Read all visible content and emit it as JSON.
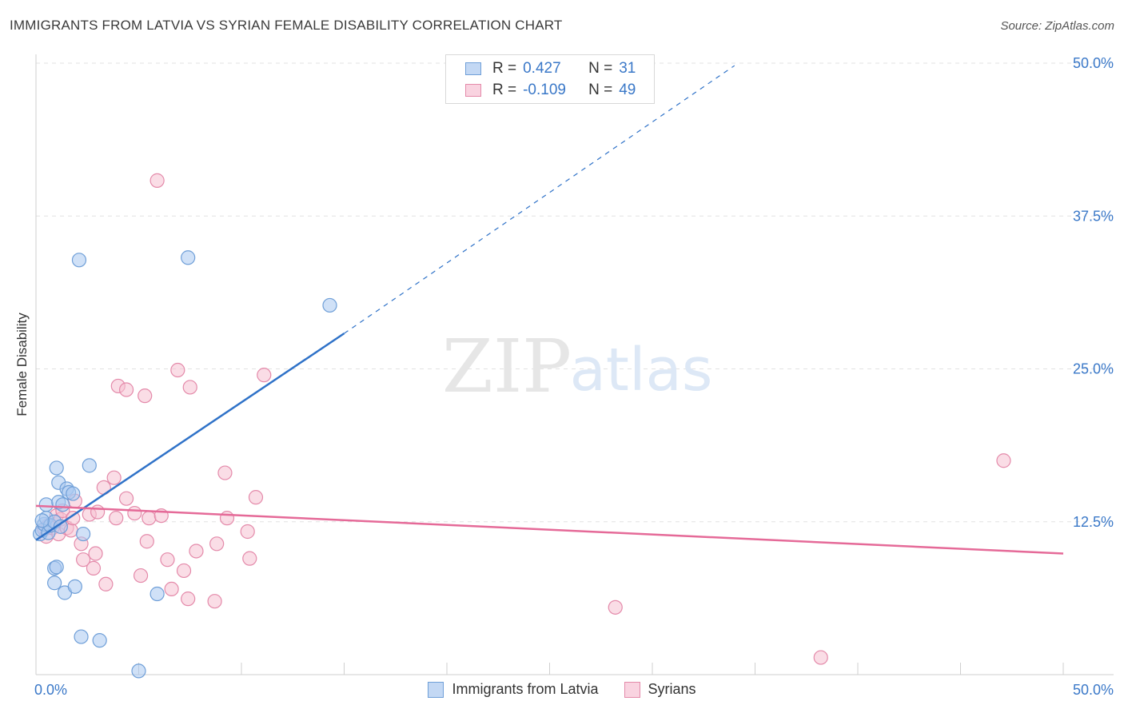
{
  "title": "IMMIGRANTS FROM LATVIA VS SYRIAN FEMALE DISABILITY CORRELATION CHART",
  "source": "Source: ZipAtlas.com",
  "watermark": {
    "zip": "ZIP",
    "atlas": "atlas"
  },
  "legend": {
    "r_label": "R =",
    "n_label": "N =",
    "series": [
      {
        "r": "0.427",
        "n": "31",
        "color": "#a9c8f0",
        "border": "#6f9fd8"
      },
      {
        "r": "-0.109",
        "n": "49",
        "color": "#f6c1d2",
        "border": "#e48aaa"
      }
    ]
  },
  "chart_data": {
    "type": "scatter",
    "title": "IMMIGRANTS FROM LATVIA VS SYRIAN FEMALE DISABILITY CORRELATION CHART",
    "xlabel": "",
    "ylabel": "Female Disability",
    "xlim": [
      0,
      50
    ],
    "ylim": [
      0,
      50
    ],
    "x_tick_labels": [
      "0.0%",
      "50.0%"
    ],
    "y_ticks": [
      12.5,
      25.0,
      37.5,
      50.0
    ],
    "y_tick_labels": [
      "12.5%",
      "25.0%",
      "37.5%",
      "50.0%"
    ],
    "grid": true,
    "legend_position": "bottom",
    "series": [
      {
        "name": "Immigrants from Latvia",
        "color": "#a9c8f0",
        "stroke": "#6f9fd8",
        "trend": {
          "x": [
            0,
            15,
            34.0
          ],
          "y": [
            11.0,
            27.9,
            49.8
          ],
          "color": "#2f72c8"
        },
        "points": [
          [
            0.2,
            11.5
          ],
          [
            0.3,
            11.8
          ],
          [
            0.4,
            12.3
          ],
          [
            0.5,
            12.8
          ],
          [
            0.6,
            11.6
          ],
          [
            0.5,
            13.9
          ],
          [
            0.7,
            12.2
          ],
          [
            0.9,
            8.7
          ],
          [
            0.9,
            7.5
          ],
          [
            0.9,
            12.5
          ],
          [
            1.0,
            8.8
          ],
          [
            1.0,
            16.9
          ],
          [
            1.1,
            15.7
          ],
          [
            1.1,
            14.1
          ],
          [
            1.2,
            12.1
          ],
          [
            1.3,
            13.9
          ],
          [
            1.4,
            6.7
          ],
          [
            1.5,
            15.2
          ],
          [
            1.6,
            14.9
          ],
          [
            1.8,
            14.8
          ],
          [
            1.9,
            7.2
          ],
          [
            2.1,
            33.9
          ],
          [
            2.2,
            3.1
          ],
          [
            2.3,
            11.5
          ],
          [
            2.6,
            17.1
          ],
          [
            3.1,
            2.8
          ],
          [
            5.0,
            0.3
          ],
          [
            5.9,
            6.6
          ],
          [
            7.4,
            34.1
          ],
          [
            14.3,
            30.2
          ],
          [
            0.3,
            12.6
          ]
        ]
      },
      {
        "name": "Syrians",
        "color": "#f6c1d2",
        "stroke": "#e48aaa",
        "trend": {
          "x": [
            0,
            50
          ],
          "y": [
            13.8,
            9.9
          ],
          "color": "#e56a98"
        },
        "points": [
          [
            0.4,
            11.9
          ],
          [
            0.5,
            11.3
          ],
          [
            0.6,
            12.2
          ],
          [
            0.8,
            12.0
          ],
          [
            1.0,
            13.0
          ],
          [
            1.1,
            11.5
          ],
          [
            1.2,
            12.7
          ],
          [
            1.3,
            13.4
          ],
          [
            1.5,
            12.0
          ],
          [
            1.7,
            11.8
          ],
          [
            1.8,
            12.8
          ],
          [
            1.9,
            14.2
          ],
          [
            2.2,
            10.7
          ],
          [
            2.3,
            9.4
          ],
          [
            2.6,
            13.1
          ],
          [
            2.8,
            8.7
          ],
          [
            2.9,
            9.9
          ],
          [
            3.0,
            13.3
          ],
          [
            3.3,
            15.3
          ],
          [
            3.4,
            7.4
          ],
          [
            3.8,
            16.1
          ],
          [
            3.9,
            12.8
          ],
          [
            4.0,
            23.6
          ],
          [
            4.4,
            23.3
          ],
          [
            4.4,
            14.4
          ],
          [
            4.8,
            13.2
          ],
          [
            5.1,
            8.1
          ],
          [
            5.3,
            22.8
          ],
          [
            5.4,
            10.9
          ],
          [
            5.5,
            12.8
          ],
          [
            5.9,
            40.4
          ],
          [
            6.1,
            13.0
          ],
          [
            6.4,
            9.4
          ],
          [
            6.6,
            7.0
          ],
          [
            6.9,
            24.9
          ],
          [
            7.2,
            8.5
          ],
          [
            7.4,
            6.2
          ],
          [
            7.5,
            23.5
          ],
          [
            7.8,
            10.1
          ],
          [
            8.7,
            6.0
          ],
          [
            8.8,
            10.7
          ],
          [
            9.2,
            16.5
          ],
          [
            9.3,
            12.8
          ],
          [
            10.3,
            11.7
          ],
          [
            10.4,
            9.5
          ],
          [
            10.7,
            14.5
          ],
          [
            11.1,
            24.5
          ],
          [
            28.2,
            5.5
          ],
          [
            38.2,
            1.4
          ],
          [
            47.1,
            17.5
          ]
        ]
      }
    ]
  }
}
